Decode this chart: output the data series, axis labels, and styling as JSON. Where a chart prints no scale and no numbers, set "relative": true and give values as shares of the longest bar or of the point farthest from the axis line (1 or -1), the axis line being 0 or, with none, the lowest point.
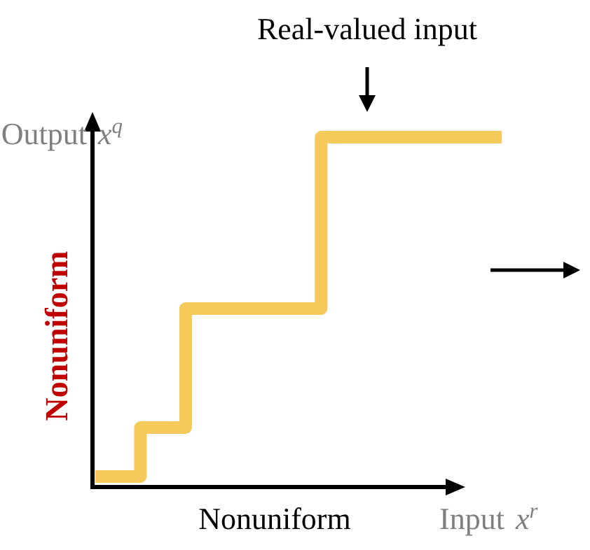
{
  "chart_data": {
    "type": "step",
    "relative": true,
    "categories": [
      null,
      null,
      null,
      null,
      null,
      null,
      null,
      null,
      null,
      null
    ],
    "values": [
      0.03,
      0.17,
      0.51,
      0.51,
      0.51,
      1,
      1,
      1,
      1,
      1
    ],
    "color": "#f6c95b",
    "xlabel": "Input x$^{r}$",
    "ylabel": "Output x$^{q}$",
    "annotations": [
      "Real-valued input",
      "Nonuniform",
      "Nonuniform"
    ]
  }
}
